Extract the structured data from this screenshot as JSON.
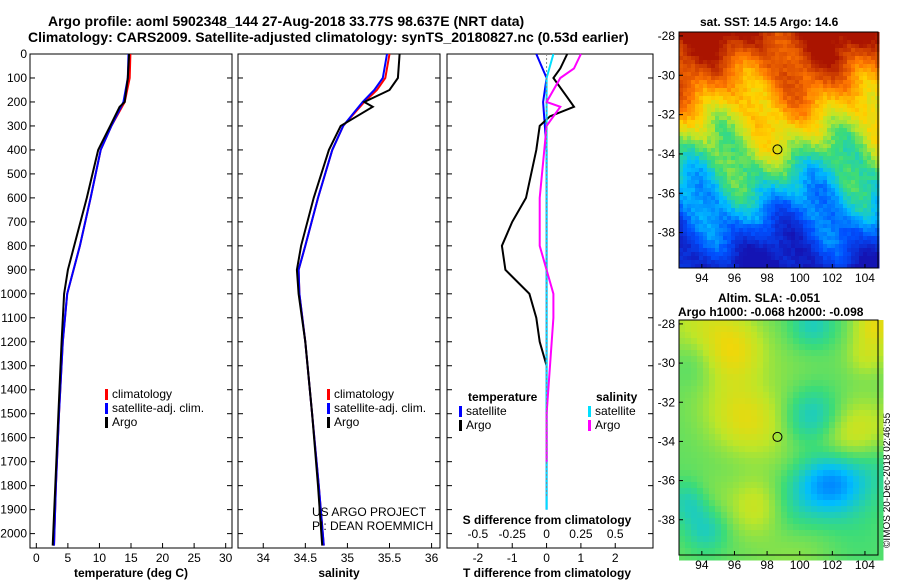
{
  "header": {
    "title_line1": "Argo profile: aoml 5902348_144 27-Aug-2018 33.77S 98.637E (NRT data)",
    "title_line2": "Climatology: CARS2009. Satellite-adjusted climatology: synTS_20180827.nc (0.53d earlier)"
  },
  "map_top_title": "sat. SST: 14.5 Argo: 14.6",
  "map_bottom_title1": "Altim. SLA: -0.051",
  "map_bottom_title2": "Argo h1000: -0.068 h2000: -0.098",
  "credit": "©IMOS 20-Dec-2018 02:46:55",
  "project": {
    "line1": "US ARGO PROJECT",
    "line2": "PI: DEAN ROEMMICH"
  },
  "colors": {
    "climatology": "#ff0000",
    "satellite": "#0000ff",
    "argo": "#000000",
    "sat_salinity": "#00e0ff",
    "argo_salinity": "#ff00ff"
  },
  "chart_data": [
    {
      "type": "line",
      "id": "temperature",
      "xlabel": "temperature (deg C)",
      "xlim": [
        -1,
        31
      ],
      "xticks": [
        "0",
        "5",
        "10",
        "15",
        "20",
        "25",
        "30"
      ],
      "ylim": [
        2060,
        0
      ],
      "yticks": [
        "0",
        "100",
        "200",
        "300",
        "400",
        "500",
        "600",
        "700",
        "800",
        "900",
        "1000",
        "1100",
        "1200",
        "1300",
        "1400",
        "1500",
        "1600",
        "1700",
        "1800",
        "1900",
        "2000"
      ],
      "legend": [
        "climatology",
        "satellite-adj. clim.",
        "Argo"
      ],
      "series": [
        {
          "name": "climatology",
          "depth": [
            0,
            100,
            200,
            300,
            400,
            600,
            800,
            1000,
            1200,
            1500,
            1800,
            2050
          ],
          "values": [
            14.9,
            14.8,
            14.0,
            11.9,
            10.2,
            8.6,
            6.9,
            4.9,
            4.2,
            3.6,
            3.1,
            2.8
          ]
        },
        {
          "name": "satellite-adj. clim.",
          "depth": [
            0,
            100,
            200,
            300,
            400,
            600,
            800,
            1000,
            1200,
            1500,
            1800,
            2050
          ],
          "values": [
            14.6,
            14.5,
            13.8,
            11.9,
            10.2,
            8.6,
            6.9,
            4.9,
            4.2,
            3.6,
            3.1,
            2.8
          ]
        },
        {
          "name": "Argo",
          "depth": [
            0,
            100,
            200,
            220,
            300,
            400,
            600,
            800,
            900,
            1000,
            1200,
            1500,
            1800,
            2050
          ],
          "values": [
            14.7,
            14.5,
            14.0,
            13.2,
            11.7,
            9.8,
            8.0,
            6.0,
            5.0,
            4.4,
            4.0,
            3.5,
            3.0,
            2.6
          ]
        }
      ]
    },
    {
      "type": "line",
      "id": "salinity",
      "xlabel": "salinity",
      "xlim": [
        33.7,
        36.1
      ],
      "xticks": [
        "34",
        "34.5",
        "35",
        "35.5",
        "36"
      ],
      "ylim": [
        2060,
        0
      ],
      "legend": [
        "climatology",
        "satellite-adj. clim.",
        "Argo"
      ],
      "series": [
        {
          "name": "climatology",
          "depth": [
            0,
            100,
            150,
            200,
            300,
            400,
            600,
            800,
            900,
            1000,
            1200,
            1500,
            1800,
            2050
          ],
          "values": [
            35.5,
            35.45,
            35.35,
            35.2,
            34.95,
            34.82,
            34.65,
            34.5,
            34.42,
            34.43,
            34.5,
            34.58,
            34.66,
            34.72
          ]
        },
        {
          "name": "satellite-adj. clim.",
          "depth": [
            0,
            100,
            150,
            200,
            300,
            400,
            600,
            800,
            900,
            1000,
            1200,
            1500,
            1800,
            2050
          ],
          "values": [
            35.47,
            35.42,
            35.32,
            35.18,
            34.95,
            34.82,
            34.65,
            34.5,
            34.42,
            34.43,
            34.5,
            34.58,
            34.66,
            34.72
          ]
        },
        {
          "name": "Argo",
          "depth": [
            0,
            100,
            150,
            200,
            220,
            300,
            400,
            600,
            800,
            900,
            1000,
            1200,
            1500,
            1800,
            2050
          ],
          "values": [
            35.62,
            35.6,
            35.5,
            35.2,
            35.3,
            34.92,
            34.78,
            34.6,
            34.45,
            34.4,
            34.42,
            34.5,
            34.58,
            34.65,
            34.7
          ]
        }
      ]
    },
    {
      "type": "line",
      "id": "difference",
      "xlabel": "T difference from climatology",
      "xlabel_top": "S difference from climatology",
      "xlim": [
        -2.9,
        3.1
      ],
      "xticks": [
        "-2",
        "-1",
        "0",
        "1",
        "2"
      ],
      "xticks_top": [
        "-0.5",
        "-0.25",
        "0",
        "0.25",
        "0.5"
      ],
      "ylim": [
        2060,
        0
      ],
      "legend_left_title": "temperature",
      "legend_right_title": "salinity",
      "legend_left": [
        "satellite",
        "Argo"
      ],
      "legend_right": [
        "satellite",
        "Argo"
      ],
      "series": [
        {
          "name": "T satellite",
          "depth": [
            0,
            100,
            200,
            400,
            800,
            1200,
            1600,
            1900
          ],
          "values": [
            -0.3,
            0.0,
            -0.1,
            0.0,
            0.0,
            0.0,
            0.0,
            0.0
          ]
        },
        {
          "name": "T Argo",
          "depth": [
            0,
            60,
            100,
            180,
            220,
            260,
            300,
            400,
            600,
            700,
            800,
            900,
            1000,
            1100,
            1200,
            1300
          ],
          "values": [
            0.6,
            0.4,
            0.2,
            0.6,
            0.8,
            0.1,
            -0.2,
            -0.3,
            -0.6,
            -1.0,
            -1.3,
            -1.2,
            -0.5,
            -0.3,
            -0.2,
            0.0
          ]
        },
        {
          "name": "S satellite",
          "depth": [
            0,
            100,
            200,
            400,
            800,
            1200,
            1600,
            1900
          ],
          "values": [
            0.05,
            0.0,
            0.0,
            0.0,
            0.0,
            0.0,
            0.0,
            0.0
          ]
        },
        {
          "name": "S Argo",
          "depth": [
            0,
            60,
            100,
            200,
            220,
            300,
            600,
            800,
            1000,
            1100,
            1500,
            1700
          ],
          "values": [
            0.25,
            0.2,
            0.1,
            0.0,
            0.1,
            0.0,
            -0.05,
            -0.05,
            0.05,
            0.05,
            0.0,
            0.0
          ]
        }
      ]
    },
    {
      "type": "heatmap",
      "id": "sst-map",
      "xticks": [
        "94",
        "96",
        "98",
        "100",
        "102",
        "104"
      ],
      "yticks": [
        "-28",
        "-30",
        "-32",
        "-34",
        "-36",
        "-38"
      ],
      "xlim": [
        92.6,
        104.8
      ],
      "ylim": [
        -39.8,
        -27.8
      ],
      "marker": [
        98.637,
        -33.77
      ]
    },
    {
      "type": "heatmap",
      "id": "sla-map",
      "xticks": [
        "94",
        "96",
        "98",
        "100",
        "102",
        "104"
      ],
      "yticks": [
        "-28",
        "-30",
        "-32",
        "-34",
        "-36",
        "-38"
      ],
      "xlim": [
        92.6,
        104.8
      ],
      "ylim": [
        -39.8,
        -27.8
      ],
      "marker": [
        98.637,
        -33.77
      ]
    }
  ]
}
